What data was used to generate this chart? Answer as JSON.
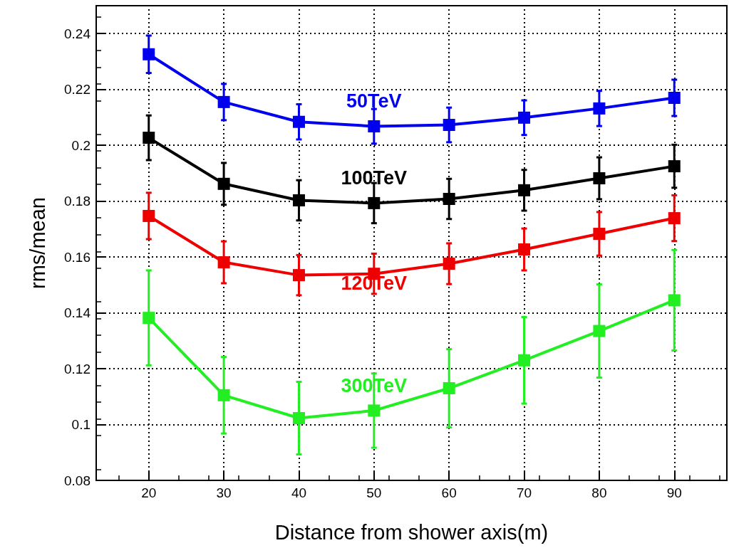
{
  "chart_data": {
    "type": "line",
    "xlabel": "Distance from shower axis(m)",
    "ylabel": "rms/mean",
    "x": [
      20,
      30,
      40,
      50,
      60,
      70,
      80,
      90
    ],
    "xlim": [
      13,
      97
    ],
    "xticks": [
      20,
      30,
      40,
      50,
      60,
      70,
      80,
      90
    ],
    "ylim": [
      0.08,
      0.25
    ],
    "yticks": [
      0.08,
      0.1,
      0.12,
      0.14,
      0.16,
      0.18,
      0.2,
      0.22,
      0.24
    ],
    "grid": true,
    "marker": "square",
    "line_style": "solid",
    "legend": false,
    "series": [
      {
        "name": "50TeV",
        "color": "#0000ee",
        "values": [
          0.2326,
          0.2155,
          0.2084,
          0.2068,
          0.2073,
          0.2099,
          0.2132,
          0.217
        ],
        "errors": [
          0.0067,
          0.0065,
          0.0063,
          0.0062,
          0.0062,
          0.0062,
          0.0063,
          0.0065
        ]
      },
      {
        "name": "100TeV",
        "color": "#000000",
        "values": [
          0.2027,
          0.1862,
          0.1803,
          0.1793,
          0.1808,
          0.1839,
          0.1882,
          0.1925
        ],
        "errors": [
          0.008,
          0.0075,
          0.0072,
          0.0072,
          0.0072,
          0.0073,
          0.0075,
          0.0077
        ]
      },
      {
        "name": "120TeV",
        "color": "#ee0000",
        "values": [
          0.1747,
          0.1581,
          0.1535,
          0.154,
          0.1576,
          0.1627,
          0.1683,
          0.1739
        ],
        "errors": [
          0.0083,
          0.0075,
          0.0072,
          0.0072,
          0.0073,
          0.0075,
          0.0078,
          0.0082
        ]
      },
      {
        "name": "300TeV",
        "color": "#22ee22",
        "values": [
          0.1382,
          0.1105,
          0.1023,
          0.105,
          0.113,
          0.123,
          0.1335,
          0.1445
        ],
        "errors": [
          0.017,
          0.0137,
          0.013,
          0.0133,
          0.014,
          0.0155,
          0.0167,
          0.018
        ]
      }
    ]
  }
}
